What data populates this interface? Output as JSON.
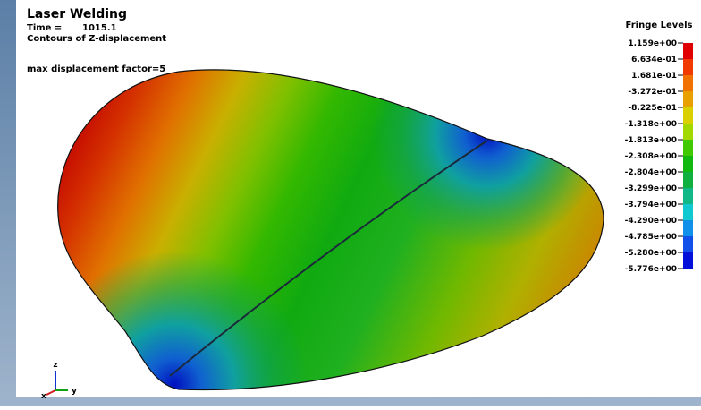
{
  "header": {
    "title": "Laser Welding",
    "time_label": "Time =",
    "time_value": "1015.1",
    "subtitle": "Contours of Z-displacement",
    "note": "max displacement factor=5"
  },
  "legend": {
    "title": "Fringe Levels",
    "levels": [
      "1.159e+00",
      "6.634e-01",
      "1.681e-01",
      "-3.272e-01",
      "-8.225e-01",
      "-1.318e+00",
      "-1.813e+00",
      "-2.308e+00",
      "-2.804e+00",
      "-3.299e+00",
      "-3.794e+00",
      "-4.290e+00",
      "-4.785e+00",
      "-5.280e+00",
      "-5.776e+00"
    ]
  },
  "triad": {
    "z": "z",
    "y": "y",
    "x": "x"
  }
}
